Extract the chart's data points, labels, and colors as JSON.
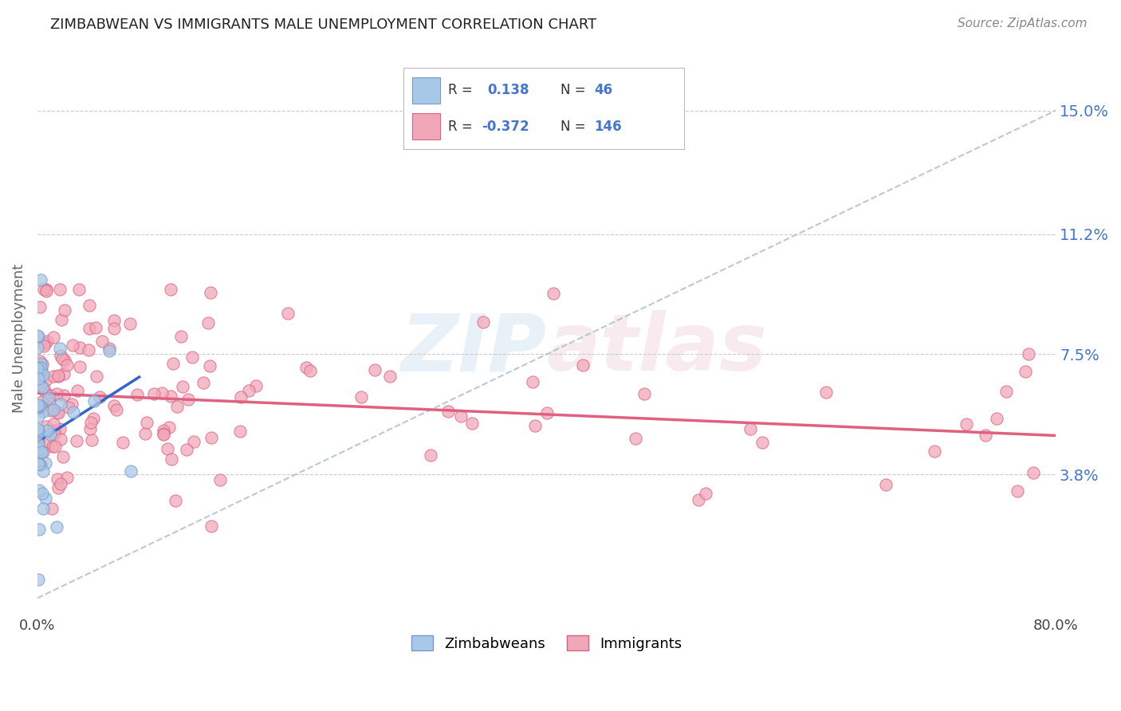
{
  "title": "ZIMBABWEAN VS IMMIGRANTS MALE UNEMPLOYMENT CORRELATION CHART",
  "source": "Source: ZipAtlas.com",
  "ylabel": "Male Unemployment",
  "xlim": [
    0.0,
    0.8
  ],
  "ylim": [
    -0.005,
    0.165
  ],
  "yticks": [
    0.038,
    0.075,
    0.112,
    0.15
  ],
  "ytick_labels": [
    "3.8%",
    "7.5%",
    "11.2%",
    "15.0%"
  ],
  "blue_color": "#a8c8e8",
  "pink_color": "#f0a8b8",
  "blue_line_color": "#3366cc",
  "pink_line_color": "#e06080",
  "gray_dash_color": "#aabbcc",
  "title_color": "#222222",
  "label_color": "#4477cc",
  "background_color": "#ffffff",
  "zim_line_x0": 0.0,
  "zim_line_x1": 0.08,
  "zim_line_y0": 0.048,
  "zim_line_y1": 0.068,
  "gray_line_x0": 0.0,
  "gray_line_x1": 0.8,
  "gray_line_y0": 0.0,
  "gray_line_y1": 0.15,
  "imm_line_x0": 0.0,
  "imm_line_x1": 0.8,
  "imm_line_y0": 0.063,
  "imm_line_y1": 0.05
}
